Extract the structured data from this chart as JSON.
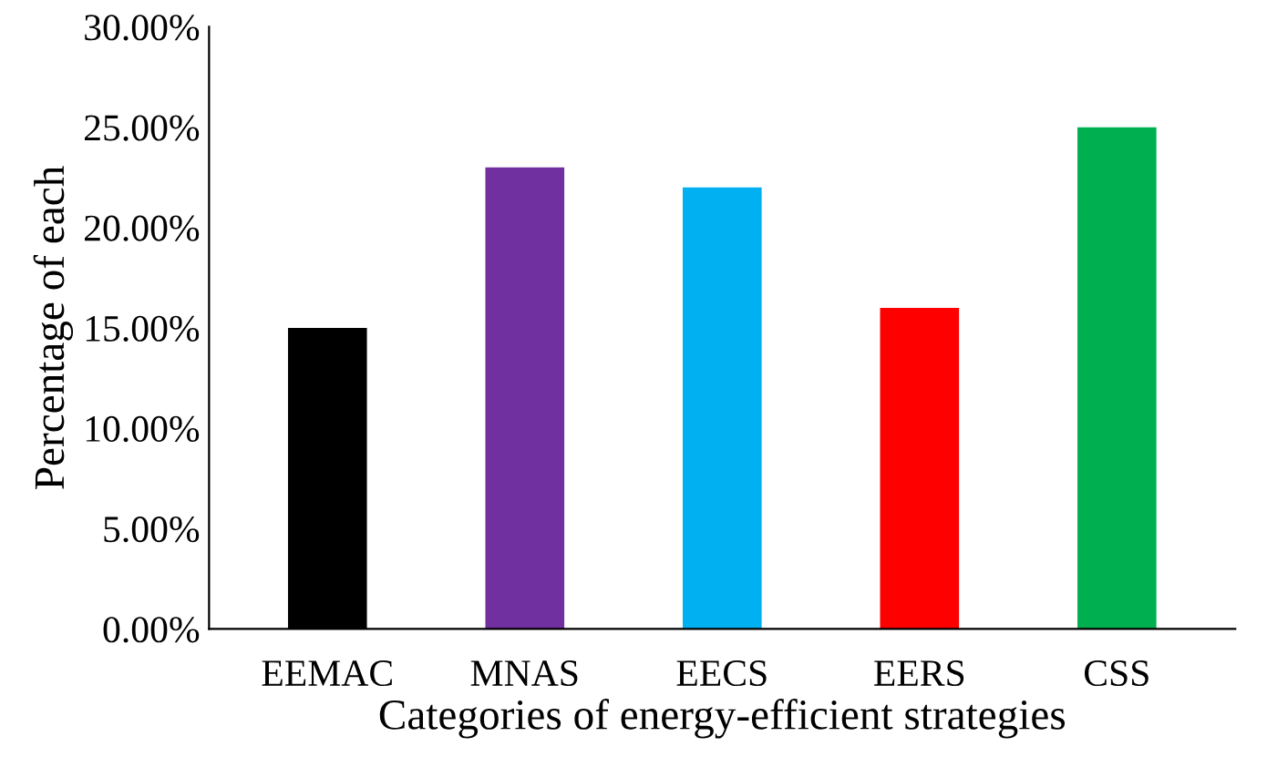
{
  "chart_data": {
    "type": "bar",
    "xlabel": "Categories of energy-efficient strategies",
    "ylabel": "Percentage of each",
    "categories": [
      "EEMAC",
      "MNAS",
      "EECS",
      "EERS",
      "CSS"
    ],
    "values": [
      15,
      23,
      22,
      16,
      25
    ],
    "colors": [
      "#000000",
      "#7030a0",
      "#00b0f0",
      "#ff0000",
      "#00b050"
    ],
    "ylim": [
      0,
      30
    ],
    "yticks": [
      {
        "value": 0,
        "label": "0.00%"
      },
      {
        "value": 5,
        "label": "5.00%"
      },
      {
        "value": 10,
        "label": "10.00%"
      },
      {
        "value": 15,
        "label": "15.00%"
      },
      {
        "value": 20,
        "label": "20.00%"
      },
      {
        "value": 25,
        "label": "25.00%"
      },
      {
        "value": 30,
        "label": "30.00%"
      }
    ],
    "grid": false,
    "legend": false
  }
}
